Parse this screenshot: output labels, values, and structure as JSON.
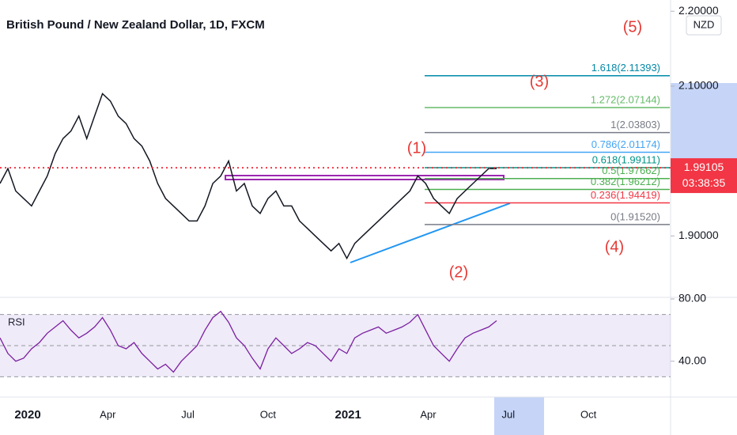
{
  "chart_data": {
    "type": "line",
    "title": "British Pound / New Zealand Dollar, 1D, FXCM",
    "currency": "NZD",
    "color": "#131722",
    "xticks": [
      "2020",
      "Apr",
      "Jul",
      "Oct",
      "2021",
      "Apr",
      "Jul",
      "Oct"
    ],
    "values": [
      1.97,
      1.99,
      1.96,
      1.95,
      1.94,
      1.96,
      1.98,
      2.01,
      2.03,
      2.04,
      2.06,
      2.03,
      2.06,
      2.09,
      2.08,
      2.06,
      2.05,
      2.03,
      2.02,
      2.0,
      1.97,
      1.95,
      1.94,
      1.93,
      1.92,
      1.92,
      1.94,
      1.97,
      1.98,
      2.0,
      1.96,
      1.97,
      1.94,
      1.93,
      1.95,
      1.96,
      1.94,
      1.94,
      1.92,
      1.91,
      1.9,
      1.89,
      1.88,
      1.89,
      1.87,
      1.89,
      1.9,
      1.91,
      1.92,
      1.93,
      1.94,
      1.95,
      1.96,
      1.98,
      1.97,
      1.95,
      1.94,
      1.93,
      1.95,
      1.96,
      1.97,
      1.98,
      1.99,
      1.99
    ],
    "ylim": [
      1.819,
      2.215
    ],
    "yticks": [
      {
        "value": 1.9,
        "label": "1.90000"
      },
      {
        "value": 2.1,
        "label": "2.10000"
      },
      {
        "value": 2.2,
        "label": "2.20000"
      }
    ],
    "last_price": 1.99105,
    "last_price_color": "#f23645",
    "countdown": "03:38:35",
    "fib": [
      {
        "label": "1.618(2.11393)",
        "value": 2.11393,
        "color": "#0288a8"
      },
      {
        "label": "1.272(2.07144)",
        "value": 2.07144,
        "color": "#66bb6a"
      },
      {
        "label": "1(2.03803)",
        "value": 2.03803,
        "color": "#787b86"
      },
      {
        "label": "0.786(2.01174)",
        "value": 2.01174,
        "color": "#42a5f5"
      },
      {
        "label": "0.618(1.99111)",
        "value": 1.99111,
        "color": "#009688"
      },
      {
        "label": "0.5(1.97662)",
        "value": 1.97662,
        "color": "#4caf50"
      },
      {
        "label": "0.382(1.96212)",
        "value": 1.96212,
        "color": "#4caf50"
      },
      {
        "label": "0.236(1.94419)",
        "value": 1.94419,
        "color": "#f23645"
      },
      {
        "label": "0(1.91520)",
        "value": 1.9152,
        "color": "#787b86"
      }
    ],
    "waves": [
      "(1)",
      "(2)",
      "(3)",
      "(4)",
      "(5)"
    ],
    "rsi": {
      "title": "RSI",
      "color": "#7b1fa2",
      "values": [
        55,
        45,
        40,
        42,
        48,
        52,
        58,
        62,
        66,
        60,
        55,
        58,
        62,
        68,
        60,
        50,
        48,
        52,
        45,
        40,
        35,
        38,
        33,
        40,
        45,
        50,
        60,
        68,
        72,
        65,
        55,
        50,
        42,
        35,
        48,
        55,
        50,
        45,
        48,
        52,
        50,
        45,
        40,
        48,
        45,
        55,
        58,
        60,
        62,
        58,
        60,
        62,
        65,
        70,
        60,
        50,
        45,
        40,
        48,
        55,
        58,
        60,
        62,
        66
      ],
      "ylim": [
        18,
        80
      ],
      "yticks": [
        {
          "value": 40,
          "label": "40.00"
        },
        {
          "value": 80,
          "label": "80.00"
        }
      ],
      "bands": [
        30,
        50,
        70
      ]
    }
  }
}
